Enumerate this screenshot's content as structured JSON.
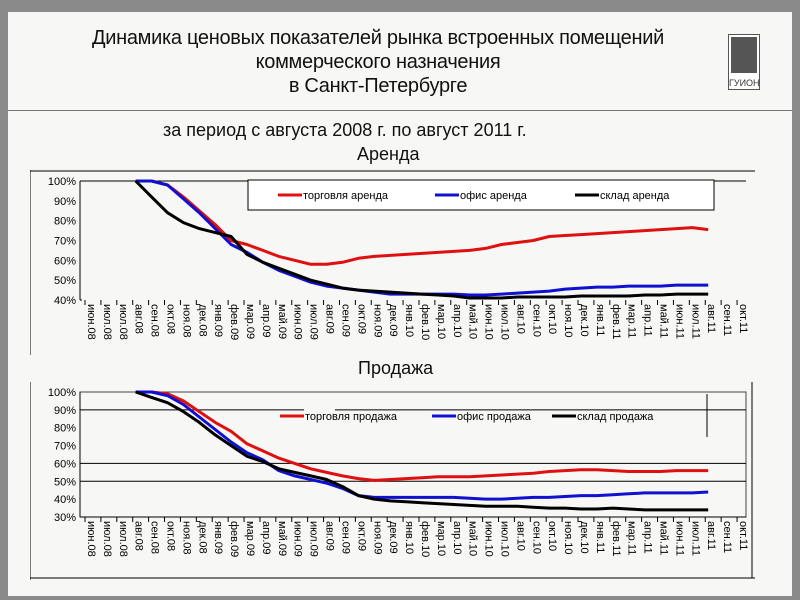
{
  "header": {
    "title_lines": [
      "Динамика ценовых показателей рынка встроенных помещений",
      "коммерческого назначения",
      "в Санкт-Петербурге"
    ],
    "logo_text": "ГУИОН",
    "period": "за период с августа 2008 г. по август 2011 г."
  },
  "months": [
    "июн.08",
    "июл.08",
    "июл.08",
    "авг.08",
    "сен.08",
    "окт.08",
    "ноя.08",
    "дек.08",
    "янв.09",
    "фев.09",
    "мар.09",
    "апр.09",
    "май.09",
    "июн.09",
    "июл.09",
    "авг.09",
    "сен.09",
    "окт.09",
    "ноя.09",
    "дек.09",
    "янв.10",
    "фев.10",
    "мар.10",
    "апр.10",
    "май.10",
    "июн.10",
    "июл.10",
    "авг.10",
    "сен.10",
    "окт.10",
    "ноя.10",
    "дек.10",
    "янв.11",
    "фев.11",
    "мар.11",
    "апр.11",
    "май.11",
    "июн.11",
    "июл.11",
    "авг.11",
    "сен.11",
    "окт.11"
  ],
  "colors": {
    "trade": "#e01010",
    "office": "#1010d0",
    "warehouse": "#000000"
  },
  "chart_data": [
    {
      "type": "line",
      "title": "Аренда",
      "xlabel": "",
      "ylabel": "",
      "ylim": [
        0.4,
        1.0
      ],
      "yticks": [
        "100%",
        "90%",
        "80%",
        "70%",
        "60%",
        "50%",
        "40%"
      ],
      "legend_position": "top-right inside",
      "x": [
        "авг.08",
        "сен.08",
        "окт.08",
        "ноя.08",
        "дек.08",
        "янв.09",
        "фев.09",
        "мар.09",
        "апр.09",
        "май.09",
        "июн.09",
        "июл.09",
        "авг.09",
        "сен.09",
        "окт.09",
        "ноя.09",
        "дек.09",
        "янв.10",
        "фев.10",
        "мар.10",
        "апр.10",
        "май.10",
        "июн.10",
        "июл.10",
        "авг.10",
        "сен.10",
        "окт.10",
        "ноя.10",
        "дек.10",
        "янв.11",
        "фев.11",
        "мар.11",
        "апр.11",
        "май.11",
        "июн.11",
        "июл.11",
        "авг.11"
      ],
      "series": [
        {
          "name": "торговля аренда",
          "values": [
            1.0,
            1.0,
            0.98,
            0.92,
            0.85,
            0.78,
            0.7,
            0.68,
            0.65,
            0.62,
            0.6,
            0.58,
            0.58,
            0.59,
            0.61,
            0.62,
            0.625,
            0.63,
            0.635,
            0.64,
            0.645,
            0.65,
            0.66,
            0.68,
            0.69,
            0.7,
            0.72,
            0.725,
            0.73,
            0.735,
            0.74,
            0.745,
            0.75,
            0.755,
            0.76,
            0.765,
            0.755
          ]
        },
        {
          "name": "офис аренда",
          "values": [
            1.0,
            1.0,
            0.98,
            0.91,
            0.84,
            0.76,
            0.68,
            0.64,
            0.59,
            0.55,
            0.52,
            0.49,
            0.47,
            0.46,
            0.45,
            0.44,
            0.43,
            0.43,
            0.43,
            0.43,
            0.43,
            0.425,
            0.425,
            0.43,
            0.435,
            0.44,
            0.445,
            0.455,
            0.46,
            0.465,
            0.465,
            0.47,
            0.47,
            0.47,
            0.475,
            0.475,
            0.475
          ]
        },
        {
          "name": "склад аренда",
          "values": [
            1.0,
            0.92,
            0.84,
            0.79,
            0.76,
            0.74,
            0.72,
            0.63,
            0.59,
            0.56,
            0.53,
            0.5,
            0.48,
            0.46,
            0.45,
            0.445,
            0.44,
            0.435,
            0.43,
            0.425,
            0.42,
            0.41,
            0.41,
            0.41,
            0.415,
            0.415,
            0.415,
            0.415,
            0.42,
            0.42,
            0.42,
            0.42,
            0.425,
            0.425,
            0.43,
            0.43,
            0.43
          ]
        }
      ]
    },
    {
      "type": "line",
      "title": "Продажа",
      "xlabel": "",
      "ylabel": "",
      "ylim": [
        0.3,
        1.0
      ],
      "yticks": [
        "100%",
        "90%",
        "80%",
        "70%",
        "60%",
        "50%",
        "40%",
        "30%"
      ],
      "legend_position": "top-right inside",
      "x": [
        "авг.08",
        "сен.08",
        "окт.08",
        "ноя.08",
        "дек.08",
        "янв.09",
        "фев.09",
        "мар.09",
        "апр.09",
        "май.09",
        "июн.09",
        "июл.09",
        "авг.09",
        "сен.09",
        "окт.09",
        "ноя.09",
        "дек.09",
        "янв.10",
        "фев.10",
        "мар.10",
        "апр.10",
        "май.10",
        "июн.10",
        "июл.10",
        "авг.10",
        "сен.10",
        "окт.10",
        "ноя.10",
        "дек.10",
        "янв.11",
        "фев.11",
        "мар.11",
        "апр.11",
        "май.11",
        "июн.11",
        "июл.11",
        "авг.11"
      ],
      "series": [
        {
          "name": "торговля продажа",
          "values": [
            1.0,
            1.0,
            0.99,
            0.95,
            0.89,
            0.83,
            0.78,
            0.71,
            0.67,
            0.63,
            0.6,
            0.57,
            0.55,
            0.53,
            0.515,
            0.505,
            0.51,
            0.515,
            0.52,
            0.525,
            0.525,
            0.525,
            0.53,
            0.535,
            0.54,
            0.545,
            0.555,
            0.56,
            0.565,
            0.565,
            0.56,
            0.555,
            0.555,
            0.555,
            0.56,
            0.56,
            0.56
          ]
        },
        {
          "name": "офис продажа",
          "values": [
            1.0,
            1.0,
            0.98,
            0.93,
            0.86,
            0.79,
            0.72,
            0.66,
            0.62,
            0.56,
            0.53,
            0.51,
            0.49,
            0.46,
            0.42,
            0.41,
            0.41,
            0.41,
            0.41,
            0.41,
            0.41,
            0.405,
            0.4,
            0.4,
            0.405,
            0.41,
            0.41,
            0.415,
            0.42,
            0.42,
            0.425,
            0.43,
            0.435,
            0.435,
            0.435,
            0.435,
            0.44
          ]
        },
        {
          "name": "склад продажа",
          "values": [
            1.0,
            0.97,
            0.94,
            0.89,
            0.83,
            0.76,
            0.7,
            0.64,
            0.61,
            0.57,
            0.55,
            0.53,
            0.51,
            0.47,
            0.42,
            0.4,
            0.39,
            0.385,
            0.38,
            0.375,
            0.37,
            0.365,
            0.36,
            0.36,
            0.36,
            0.355,
            0.35,
            0.35,
            0.345,
            0.345,
            0.35,
            0.345,
            0.34,
            0.34,
            0.34,
            0.34,
            0.34
          ]
        }
      ]
    }
  ]
}
